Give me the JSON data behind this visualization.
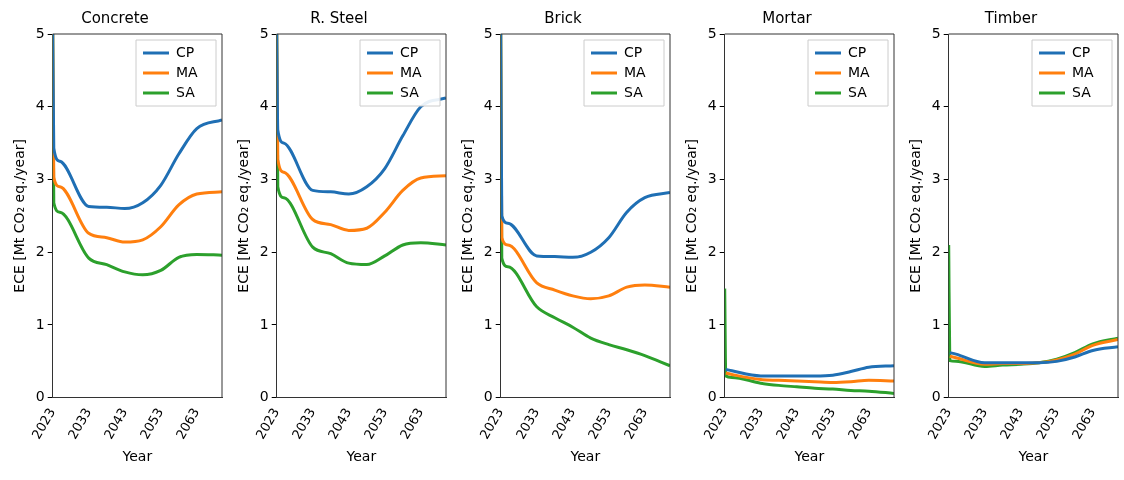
{
  "chart_data": [
    {
      "type": "line",
      "title": "Concrete",
      "xlabel": "Year",
      "ylabel": "ECE [Mt CO₂ eq./year]",
      "x": [
        2023,
        2023.3,
        2025,
        2033,
        2038,
        2043,
        2048,
        2053,
        2058,
        2063,
        2070
      ],
      "xlim": [
        2023,
        2070
      ],
      "xticks": [
        2023,
        2033,
        2043,
        2053,
        2063
      ],
      "ylim": [
        0,
        5
      ],
      "yticks": [
        0,
        1,
        2,
        3,
        4,
        5
      ],
      "grid": false,
      "legend": "top right",
      "series": [
        {
          "name": "CP",
          "color": "#1f6fb4",
          "values": [
            5,
            3.43,
            3.25,
            2.63,
            2.62,
            2.6,
            2.68,
            2.92,
            3.35,
            3.7,
            3.82
          ]
        },
        {
          "name": "MA",
          "color": "#ff7f0e",
          "values": [
            5,
            3.03,
            2.9,
            2.26,
            2.2,
            2.14,
            2.17,
            2.35,
            2.65,
            2.8,
            2.83
          ]
        },
        {
          "name": "SA",
          "color": "#2ca02c",
          "values": [
            5,
            2.68,
            2.55,
            1.92,
            1.83,
            1.73,
            1.69,
            1.75,
            1.93,
            1.97,
            1.96
          ]
        }
      ]
    },
    {
      "type": "line",
      "title": "R. Steel",
      "xlabel": "Year",
      "ylabel": "ECE [Mt CO₂ eq./year]",
      "x": [
        2023,
        2023.3,
        2025,
        2033,
        2038,
        2043,
        2048,
        2053,
        2058,
        2063,
        2070
      ],
      "xlim": [
        2023,
        2070
      ],
      "xticks": [
        2023,
        2033,
        2043,
        2053,
        2063
      ],
      "ylim": [
        0,
        5
      ],
      "yticks": [
        0,
        1,
        2,
        3,
        4,
        5
      ],
      "grid": false,
      "legend": "top right",
      "series": [
        {
          "name": "CP",
          "color": "#1f6fb4",
          "values": [
            5,
            3.68,
            3.5,
            2.85,
            2.83,
            2.8,
            2.9,
            3.15,
            3.6,
            4.0,
            4.12
          ]
        },
        {
          "name": "MA",
          "color": "#ff7f0e",
          "values": [
            5,
            3.28,
            3.1,
            2.45,
            2.38,
            2.3,
            2.33,
            2.55,
            2.85,
            3.02,
            3.05
          ]
        },
        {
          "name": "SA",
          "color": "#2ca02c",
          "values": [
            5,
            2.9,
            2.75,
            2.07,
            1.98,
            1.85,
            1.83,
            1.95,
            2.1,
            2.13,
            2.1
          ]
        }
      ]
    },
    {
      "type": "line",
      "title": "Brick",
      "xlabel": "Year",
      "ylabel": "ECE [Mt CO₂ eq./year]",
      "x": [
        2023,
        2023.3,
        2025,
        2033,
        2038,
        2043,
        2048,
        2053,
        2058,
        2063,
        2070
      ],
      "xlim": [
        2023,
        2070
      ],
      "xticks": [
        2023,
        2033,
        2043,
        2053,
        2063
      ],
      "ylim": [
        0,
        5
      ],
      "yticks": [
        0,
        1,
        2,
        3,
        4,
        5
      ],
      "grid": false,
      "legend": "top right",
      "series": [
        {
          "name": "CP",
          "color": "#1f6fb4",
          "values": [
            5,
            2.5,
            2.4,
            1.95,
            1.94,
            1.93,
            2.0,
            2.2,
            2.55,
            2.75,
            2.82
          ]
        },
        {
          "name": "MA",
          "color": "#ff7f0e",
          "values": [
            5,
            2.2,
            2.1,
            1.58,
            1.48,
            1.4,
            1.36,
            1.4,
            1.52,
            1.55,
            1.52
          ]
        },
        {
          "name": "SA",
          "color": "#2ca02c",
          "values": [
            5,
            1.92,
            1.8,
            1.25,
            1.1,
            0.97,
            0.82,
            0.73,
            0.66,
            0.58,
            0.44
          ]
        }
      ]
    },
    {
      "type": "line",
      "title": "Mortar",
      "xlabel": "Year",
      "ylabel": "ECE [Mt CO₂ eq./year]",
      "x": [
        2023,
        2023.3,
        2025,
        2033,
        2038,
        2043,
        2048,
        2053,
        2058,
        2063,
        2070
      ],
      "xlim": [
        2023,
        2070
      ],
      "xticks": [
        2023,
        2033,
        2043,
        2053,
        2063
      ],
      "ylim": [
        0,
        5
      ],
      "yticks": [
        0,
        1,
        2,
        3,
        4,
        5
      ],
      "grid": false,
      "legend": "top right",
      "series": [
        {
          "name": "CP",
          "color": "#1f6fb4",
          "values": [
            null,
            0.39,
            0.37,
            0.3,
            0.3,
            0.3,
            0.3,
            0.31,
            0.36,
            0.42,
            0.44
          ]
        },
        {
          "name": "MA",
          "color": "#ff7f0e",
          "values": [
            null,
            0.34,
            0.32,
            0.25,
            0.24,
            0.23,
            0.22,
            0.21,
            0.22,
            0.24,
            0.23
          ]
        },
        {
          "name": "SA",
          "color": "#2ca02c",
          "values": [
            1.5,
            0.3,
            0.28,
            0.2,
            0.17,
            0.15,
            0.13,
            0.12,
            0.1,
            0.09,
            0.06
          ]
        }
      ]
    },
    {
      "type": "line",
      "title": "Timber",
      "xlabel": "Year",
      "ylabel": "ECE [Mt CO₂ eq./year]",
      "x": [
        2023,
        2023.3,
        2025,
        2033,
        2038,
        2043,
        2048,
        2053,
        2058,
        2063,
        2070
      ],
      "xlim": [
        2023,
        2070
      ],
      "xticks": [
        2023,
        2033,
        2043,
        2053,
        2063
      ],
      "ylim": [
        0,
        5
      ],
      "yticks": [
        0,
        1,
        2,
        3,
        4,
        5
      ],
      "grid": false,
      "legend": "top right",
      "series": [
        {
          "name": "CP",
          "color": "#1f6fb4",
          "values": [
            null,
            0.62,
            0.6,
            0.48,
            0.48,
            0.48,
            0.48,
            0.5,
            0.56,
            0.65,
            0.7
          ]
        },
        {
          "name": "MA",
          "color": "#ff7f0e",
          "values": [
            null,
            0.57,
            0.55,
            0.46,
            0.47,
            0.47,
            0.48,
            0.52,
            0.6,
            0.72,
            0.8
          ]
        },
        {
          "name": "SA",
          "color": "#2ca02c",
          "values": [
            2.1,
            0.51,
            0.5,
            0.43,
            0.45,
            0.46,
            0.48,
            0.53,
            0.62,
            0.74,
            0.82
          ]
        }
      ]
    }
  ]
}
